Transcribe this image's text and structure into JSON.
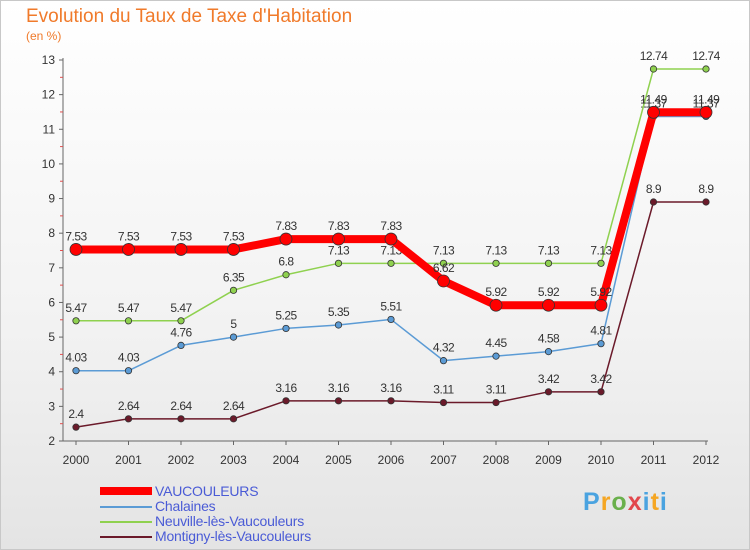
{
  "title": "Evolution du Taux de Taxe d'Habitation",
  "subtitle": "(en %)",
  "logo": {
    "text": "Proxiti",
    "parts": [
      "P",
      "r",
      "o",
      "x",
      "i",
      "t",
      "i"
    ]
  },
  "chart_data": {
    "type": "line",
    "title": "Evolution du Taux de Taxe d'Habitation",
    "ylabel": "(en %)",
    "xlabel": "",
    "ylim": [
      2,
      13
    ],
    "yticks": [
      2,
      3,
      4,
      5,
      6,
      7,
      8,
      9,
      10,
      11,
      12,
      13
    ],
    "x": [
      "2000",
      "2001",
      "2002",
      "2003",
      "2004",
      "2005",
      "2006",
      "2007",
      "2008",
      "2009",
      "2010",
      "2011",
      "2012"
    ],
    "grid": false,
    "legend_position": "bottom-left",
    "series": [
      {
        "name": "Montigny-lès-Vaucouleurs",
        "color": "#6b1a2a",
        "values": [
          2.4,
          2.64,
          2.64,
          2.64,
          3.16,
          3.16,
          3.16,
          3.11,
          3.11,
          3.42,
          3.42,
          8.9,
          8.9
        ],
        "labels": [
          "2.4",
          "2.64",
          "2.64",
          "2.64",
          "3.16",
          "3.16",
          "3.16",
          "3.11",
          "3.11",
          "3.42",
          "3.42",
          "8.9",
          "8.9"
        ]
      },
      {
        "name": "Chalaines",
        "color": "#5b9bd5",
        "values": [
          4.03,
          4.03,
          4.76,
          5,
          5.25,
          5.35,
          5.51,
          4.32,
          4.45,
          4.58,
          4.81,
          11.37,
          11.37
        ],
        "labels": [
          "4.03",
          "4.03",
          "4.76",
          "5",
          "5.25",
          "5.35",
          "5.51",
          "4.32",
          "4.45",
          "4.58",
          "4.81",
          "11.37",
          "11.37"
        ]
      },
      {
        "name": "Neuville-lès-Vaucouleurs",
        "color": "#8fd14f",
        "values": [
          5.47,
          5.47,
          5.47,
          6.35,
          6.8,
          7.13,
          7.13,
          7.13,
          7.13,
          7.13,
          7.13,
          12.74,
          12.74
        ],
        "labels": [
          "5.47",
          "5.47",
          "5.47",
          "6.35",
          "6.8",
          "7.13",
          "7.13",
          "7.13",
          "7.13",
          "7.13",
          "7.13",
          "12.74",
          "12.74"
        ]
      },
      {
        "name": "VAUCOULEURS",
        "color": "#ff0000",
        "values": [
          7.53,
          7.53,
          7.53,
          7.53,
          7.83,
          7.83,
          7.83,
          6.62,
          5.92,
          5.92,
          5.92,
          11.49,
          11.49
        ],
        "labels": [
          "7.53",
          "7.53",
          "7.53",
          "7.53",
          "7.83",
          "7.83",
          "7.83",
          "6.62",
          "5.92",
          "5.92",
          "5.92",
          "11.49",
          "11.49"
        ]
      }
    ],
    "legend_order": [
      "VAUCOULEURS",
      "Chalaines",
      "Neuville-lès-Vaucouleurs",
      "Montigny-lès-Vaucouleurs"
    ]
  }
}
